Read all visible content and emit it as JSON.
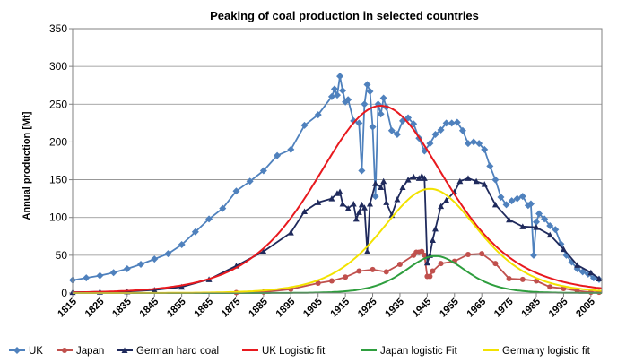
{
  "chart_data": {
    "type": "line",
    "title": "Peaking of coal production in selected countries",
    "xlabel": "",
    "ylabel": "Annual production [Mt]",
    "xlim": [
      1815,
      2009
    ],
    "ylim": [
      0,
      350
    ],
    "yticks": [
      "0",
      "50",
      "100",
      "150",
      "200",
      "250",
      "300",
      "350"
    ],
    "xticks": [
      "1815",
      "1825",
      "1835",
      "1845",
      "1855",
      "1865",
      "1875",
      "1885",
      "1895",
      "1905",
      "1915",
      "1925",
      "1935",
      "1945",
      "1955",
      "1965",
      "1975",
      "1985",
      "1995",
      "2005"
    ],
    "series": [
      {
        "name": "UK",
        "color": "#4F81BD",
        "marker": "diamond",
        "style": "data",
        "x": [
          1815,
          1820,
          1825,
          1830,
          1835,
          1840,
          1845,
          1850,
          1855,
          1860,
          1865,
          1870,
          1875,
          1880,
          1885,
          1890,
          1895,
          1900,
          1905,
          1910,
          1911,
          1912,
          1913,
          1914,
          1915,
          1916,
          1918,
          1920,
          1921,
          1922,
          1923,
          1924,
          1925,
          1926,
          1927,
          1928,
          1929,
          1930,
          1932,
          1934,
          1936,
          1938,
          1940,
          1942,
          1944,
          1946,
          1948,
          1950,
          1952,
          1954,
          1956,
          1958,
          1960,
          1962,
          1964,
          1966,
          1968,
          1970,
          1972,
          1974,
          1976,
          1978,
          1980,
          1982,
          1983,
          1984,
          1985,
          1986,
          1988,
          1990,
          1992,
          1994,
          1996,
          1998,
          2000,
          2002,
          2004,
          2006,
          2008
        ],
        "y": [
          17,
          20,
          23,
          27,
          32,
          38,
          45,
          52,
          64,
          81,
          98,
          112,
          135,
          148,
          162,
          182,
          190,
          222,
          236,
          260,
          270,
          262,
          287,
          268,
          253,
          256,
          228,
          225,
          162,
          250,
          276,
          267,
          220,
          128,
          250,
          237,
          258,
          246,
          215,
          210,
          228,
          232,
          224,
          205,
          188,
          198,
          210,
          216,
          225,
          225,
          226,
          215,
          198,
          200,
          198,
          190,
          168,
          150,
          127,
          117,
          122,
          125,
          128,
          116,
          118,
          50,
          94,
          105,
          98,
          89,
          84,
          65,
          50,
          41,
          32,
          28,
          25,
          20,
          18
        ]
      },
      {
        "name": "Japan",
        "color": "#C0504D",
        "marker": "circle",
        "style": "data",
        "x": [
          1875,
          1885,
          1895,
          1905,
          1910,
          1915,
          1920,
          1925,
          1930,
          1935,
          1940,
          1941,
          1942,
          1943,
          1944,
          1945,
          1946,
          1947,
          1950,
          1955,
          1960,
          1965,
          1970,
          1975,
          1980,
          1985,
          1990,
          1995,
          2000,
          2005,
          2008
        ],
        "y": [
          0.6,
          1.3,
          5,
          13,
          16,
          21,
          29,
          31,
          28,
          38,
          50,
          54,
          54,
          55,
          50,
          22,
          22,
          29,
          39,
          42,
          51,
          52,
          39,
          19,
          18,
          16,
          8,
          6,
          3,
          1,
          1
        ]
      },
      {
        "name": "German hard coal",
        "color": "#1F2A5C",
        "marker": "triangle",
        "style": "data",
        "x": [
          1815,
          1825,
          1835,
          1845,
          1855,
          1865,
          1875,
          1885,
          1895,
          1900,
          1905,
          1910,
          1912,
          1913,
          1914,
          1916,
          1918,
          1919,
          1920,
          1921,
          1922,
          1923,
          1924,
          1926,
          1928,
          1929,
          1930,
          1932,
          1934,
          1936,
          1938,
          1940,
          1942,
          1943,
          1944,
          1945,
          1946,
          1947,
          1948,
          1950,
          1952,
          1955,
          1957,
          1960,
          1963,
          1966,
          1970,
          1975,
          1980,
          1985,
          1990,
          1995,
          2000,
          2005,
          2008
        ],
        "y": [
          1,
          1.5,
          2,
          4,
          8,
          18,
          36,
          55,
          80,
          108,
          120,
          125,
          132,
          134,
          118,
          112,
          118,
          98,
          107,
          117,
          113,
          55,
          118,
          145,
          140,
          148,
          120,
          103,
          124,
          140,
          150,
          154,
          152,
          155,
          152,
          40,
          50,
          70,
          85,
          115,
          123,
          134,
          148,
          152,
          148,
          144,
          117,
          97,
          88,
          87,
          77,
          58,
          37,
          27,
          19
        ]
      },
      {
        "name": "UK Logistic fit",
        "color": "#E8191E",
        "marker": "none",
        "style": "fit",
        "peak": 1928,
        "amplitude": 248,
        "width": 32
      },
      {
        "name": "Japan logistic Fit",
        "color": "#2E9E3E",
        "marker": "none",
        "style": "fit",
        "peak": 1948,
        "amplitude": 49,
        "width": 15
      },
      {
        "name": "Germany logistic fit",
        "color": "#F2E200",
        "marker": "none",
        "style": "fit",
        "peak": 1946,
        "amplitude": 138,
        "width": 24
      }
    ],
    "legend": "bottom",
    "grid": {
      "horizontal": true,
      "vertical": false
    }
  }
}
